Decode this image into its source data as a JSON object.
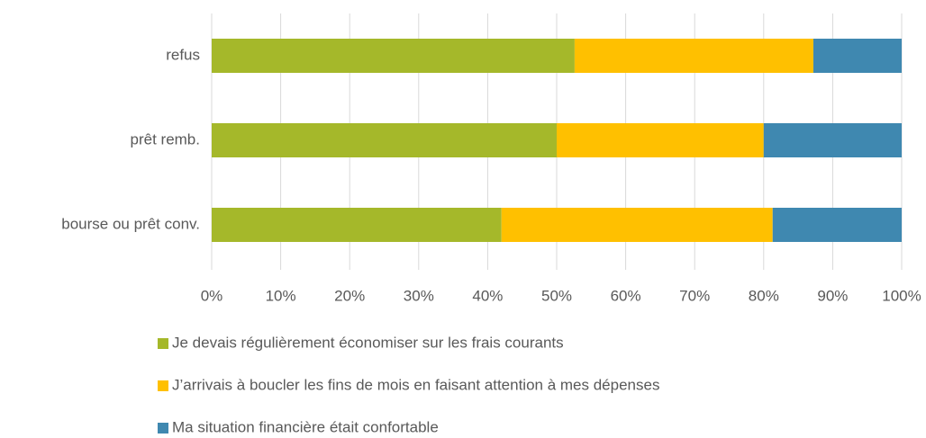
{
  "chart_data": {
    "type": "stacked_barh",
    "categories": [
      "refus",
      "prêt remb.",
      "bourse ou prêt conv."
    ],
    "series": [
      {
        "name": "Je devais régulièrement économiser sur les frais courants",
        "color": "#a5b82a",
        "values": [
          52.6,
          50,
          42
        ]
      },
      {
        "name": "J’arrivais à boucler les fins de mois en faisant attention à mes dépenses",
        "color": "#ffc000",
        "values": [
          34.6,
          30,
          39.3
        ]
      },
      {
        "name": "Ma situation financière était confortable",
        "color": "#3f88b0",
        "values": [
          12.8,
          20,
          18.7
        ]
      }
    ],
    "xlim": [
      0,
      100
    ],
    "xticks": [
      {
        "value": 0,
        "label": "0%"
      },
      {
        "value": 10,
        "label": "10%"
      },
      {
        "value": 20,
        "label": "20%"
      },
      {
        "value": 30,
        "label": "30%"
      },
      {
        "value": 40,
        "label": "40%"
      },
      {
        "value": 50,
        "label": "50%"
      },
      {
        "value": 60,
        "label": "60%"
      },
      {
        "value": 70,
        "label": "70%"
      },
      {
        "value": 80,
        "label": "80%"
      },
      {
        "value": 90,
        "label": "90%"
      },
      {
        "value": 100,
        "label": "100%"
      }
    ],
    "grid": true,
    "legend": "bottom"
  }
}
